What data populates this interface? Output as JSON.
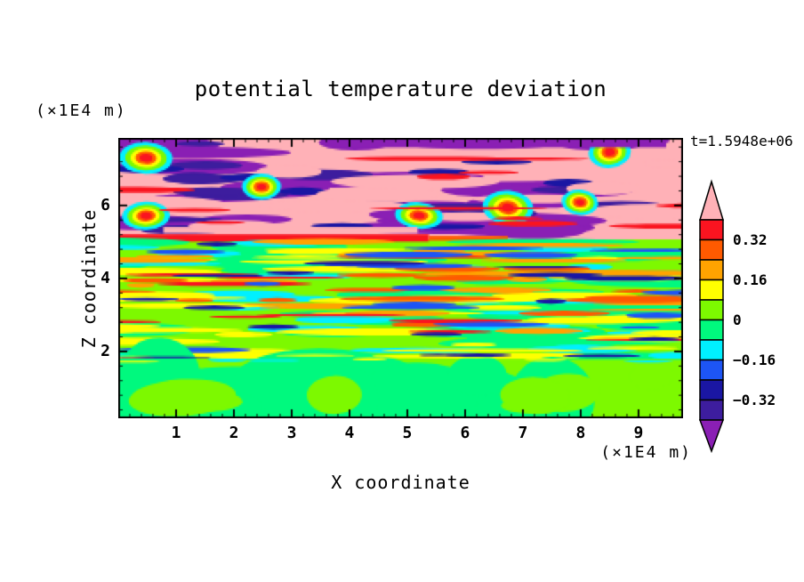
{
  "chart_data": {
    "type": "heatmap",
    "title": "potential temperature deviation",
    "time_annotation": "t=1.5948e+06",
    "xlabel": "X coordinate",
    "ylabel": "Z coordinate",
    "x_unit_label": "(×1E4 m)",
    "z_unit_label": "(×1E4 m)",
    "xlim": [
      0,
      9.77
    ],
    "zlim": [
      0.17,
      7.85
    ],
    "x_major_ticks": [
      1,
      2,
      3,
      4,
      5,
      6,
      7,
      8,
      9
    ],
    "x_minor_step": 0.2,
    "z_major_ticks": [
      2,
      4,
      6
    ],
    "z_minor_step": 0.4,
    "colorbar": {
      "levels_top_to_bottom": [
        0.4,
        0.32,
        0.24,
        0.16,
        0.08,
        0,
        -0.08,
        -0.16,
        -0.24,
        -0.32,
        -0.4
      ],
      "label_values": [
        "0.32",
        "0.16",
        "0",
        "−0.16",
        "−0.32"
      ],
      "segment_colors_top_to_bottom": [
        "#FA1420",
        "#FF5A00",
        "#FFA300",
        "#FFFF00",
        "#7DF900",
        "#00F97E",
        "#00F0FF",
        "#1D55F5",
        "#1A16A3",
        "#3D1D9E"
      ],
      "over_arrow_color": "#FFB1B7",
      "under_arrow_color": "#8A1FB4",
      "outline_color": "#000000"
    },
    "palette": {
      "pink": "#FFB1B7",
      "red": "#FA1420",
      "orangered": "#FF5A00",
      "orange": "#FFA300",
      "yellow": "#FFFF00",
      "chartreuse": "#7DF900",
      "springgreen": "#00F97E",
      "cyan": "#00F0FF",
      "blue": "#1D55F5",
      "navy": "#1A16A3",
      "indigo": "#3D1D9E",
      "purple": "#8A1FB4"
    },
    "field_structure": [
      {
        "z_range": [
          5.9,
          7.85
        ],
        "values": "beyond ±0.40",
        "description": "breaking-wave layer: interleaved pink (>0.40) and purple (<−0.40) tongues with red, navy and rainbow braid cores"
      },
      {
        "z_range": [
          5.6,
          5.9
        ],
        "values": "0.32 to >0.40",
        "description": "strong red band across the left half with pink lenses"
      },
      {
        "z_range": [
          2.0,
          5.6
        ],
        "values": "-0.32 to 0.32",
        "description": "fine horizontal streaks of yellow, orange, red, cyan, blue, navy on a green background"
      },
      {
        "z_range": [
          0.17,
          2.0
        ],
        "values": "-0.08 to 0.08",
        "description": "calm region of smooth chartreuse and spring-green blobs"
      }
    ],
    "texture": {
      "seed": 7,
      "layers": [
        {
          "shape": "fill",
          "color": "pink",
          "y": [
            0,
            0.362
          ]
        },
        {
          "shape": "fill",
          "color": "chartreuse",
          "y": [
            0.362,
            1
          ]
        },
        {
          "shape": "streak",
          "color": "purple",
          "count": 26,
          "y": [
            0.01,
            0.33
          ],
          "w": [
            0.1,
            0.42
          ],
          "h": [
            0.03,
            0.065
          ]
        },
        {
          "shape": "streak",
          "color": "indigo",
          "count": 13,
          "y": [
            0.02,
            0.33
          ],
          "w": [
            0.06,
            0.22
          ],
          "h": [
            0.018,
            0.045
          ]
        },
        {
          "shape": "streak",
          "color": "navy",
          "count": 9,
          "y": [
            0.04,
            0.32
          ],
          "w": [
            0.05,
            0.16
          ],
          "h": [
            0.012,
            0.03
          ]
        },
        {
          "shape": "streak",
          "color": "pink",
          "count": 11,
          "y": [
            0.05,
            0.32
          ],
          "w": [
            0.1,
            0.32
          ],
          "h": [
            0.022,
            0.055
          ]
        },
        {
          "shape": "braid",
          "count": 7,
          "y": [
            0.05,
            0.3
          ],
          "w": [
            0.06,
            0.15
          ],
          "h": [
            0.06,
            0.13
          ],
          "rings": [
            "cyan",
            "chartreuse",
            "yellow",
            "orangered",
            "red"
          ],
          "scales": [
            1,
            0.78,
            0.58,
            0.4,
            0.24
          ]
        },
        {
          "shape": "streak",
          "color": "red",
          "count": 12,
          "y": [
            0.02,
            0.34
          ],
          "w": [
            0.08,
            0.36
          ],
          "h": [
            0.01,
            0.024
          ]
        },
        {
          "shape": "rect",
          "color": "purple",
          "x": 0.37,
          "y": 0,
          "w": 0.6,
          "h": 0.034
        },
        {
          "shape": "rect",
          "color": "pink",
          "x": 0.08,
          "y": 0.318,
          "w": 0.45,
          "h": 0.022
        },
        {
          "shape": "rect",
          "color": "red",
          "x": 0,
          "y": 0.344,
          "w": 0.55,
          "h": 0.026
        },
        {
          "shape": "rect",
          "color": "orangered",
          "x": 0.55,
          "y": 0.35,
          "w": 0.14,
          "h": 0.016
        },
        {
          "shape": "streak",
          "color": "springgreen",
          "count": 42,
          "y": [
            0.37,
            0.79
          ],
          "w": [
            0.08,
            0.45
          ],
          "h": [
            0.02,
            0.055
          ]
        },
        {
          "shape": "streak",
          "color": "cyan",
          "count": 26,
          "y": [
            0.37,
            0.78
          ],
          "w": [
            0.05,
            0.26
          ],
          "h": [
            0.012,
            0.032
          ]
        },
        {
          "shape": "streak",
          "color": "yellow",
          "count": 44,
          "y": [
            0.37,
            0.78
          ],
          "w": [
            0.06,
            0.36
          ],
          "h": [
            0.01,
            0.03
          ]
        },
        {
          "shape": "streak",
          "color": "orange",
          "count": 24,
          "y": [
            0.37,
            0.77
          ],
          "w": [
            0.05,
            0.3
          ],
          "h": [
            0.008,
            0.024
          ]
        },
        {
          "shape": "streak",
          "color": "orangered",
          "count": 16,
          "y": [
            0.37,
            0.74
          ],
          "w": [
            0.05,
            0.3
          ],
          "h": [
            0.008,
            0.022
          ]
        },
        {
          "shape": "streak",
          "color": "red",
          "count": 10,
          "y": [
            0.38,
            0.72
          ],
          "w": [
            0.06,
            0.32
          ],
          "h": [
            0.007,
            0.018
          ]
        },
        {
          "shape": "streak",
          "color": "blue",
          "count": 18,
          "y": [
            0.37,
            0.77
          ],
          "w": [
            0.05,
            0.26
          ],
          "h": [
            0.008,
            0.022
          ]
        },
        {
          "shape": "streak",
          "color": "navy",
          "count": 13,
          "y": [
            0.37,
            0.76
          ],
          "w": [
            0.05,
            0.24
          ],
          "h": [
            0.007,
            0.02
          ]
        },
        {
          "shape": "fill",
          "color": "chartreuse",
          "y": [
            0.79,
            1
          ]
        },
        {
          "shape": "blob",
          "color": "springgreen",
          "count": 16,
          "y": [
            0.8,
            1.02
          ],
          "w": [
            0.1,
            0.42
          ],
          "h": [
            0.1,
            0.3
          ]
        },
        {
          "shape": "blob",
          "color": "chartreuse",
          "count": 7,
          "y": [
            0.82,
            1.02
          ],
          "w": [
            0.06,
            0.2
          ],
          "h": [
            0.06,
            0.16
          ]
        },
        {
          "shape": "streak",
          "color": "yellow",
          "count": 8,
          "y": [
            0.77,
            0.8
          ],
          "w": [
            0.05,
            0.22
          ],
          "h": [
            0.006,
            0.014
          ]
        },
        {
          "shape": "streak",
          "color": "cyan",
          "count": 5,
          "y": [
            0.77,
            0.8
          ],
          "w": [
            0.04,
            0.15
          ],
          "h": [
            0.006,
            0.012
          ]
        },
        {
          "shape": "streak",
          "color": "navy",
          "count": 4,
          "y": [
            0.765,
            0.795
          ],
          "w": [
            0.05,
            0.18
          ],
          "h": [
            0.005,
            0.012
          ]
        }
      ]
    }
  }
}
